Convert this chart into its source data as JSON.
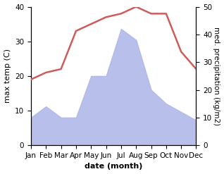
{
  "months": [
    "Jan",
    "Feb",
    "Mar",
    "Apr",
    "May",
    "Jun",
    "Jul",
    "Aug",
    "Sep",
    "Oct",
    "Nov",
    "Dec"
  ],
  "month_indices": [
    1,
    2,
    3,
    4,
    5,
    6,
    7,
    8,
    9,
    10,
    11,
    12
  ],
  "max_temp": [
    19,
    21,
    22,
    33,
    35,
    37,
    38,
    40,
    38,
    38,
    27,
    22
  ],
  "precipitation": [
    10,
    14,
    10,
    10,
    25,
    25,
    42,
    38,
    20,
    15,
    12,
    9
  ],
  "temp_color": "#cd5c5c",
  "precip_color": "#b0b8e8",
  "temp_ylim": [
    0,
    40
  ],
  "precip_ylim": [
    0,
    50
  ],
  "temp_yticks": [
    0,
    10,
    20,
    30,
    40
  ],
  "precip_yticks": [
    0,
    10,
    20,
    30,
    40,
    50
  ],
  "xlabel": "date (month)",
  "ylabel_left": "max temp (C)",
  "ylabel_right": "med. precipitation (kg/m2)",
  "bg_color": "#ffffff",
  "label_fontsize": 8,
  "tick_fontsize": 7.5,
  "linewidth": 1.8
}
